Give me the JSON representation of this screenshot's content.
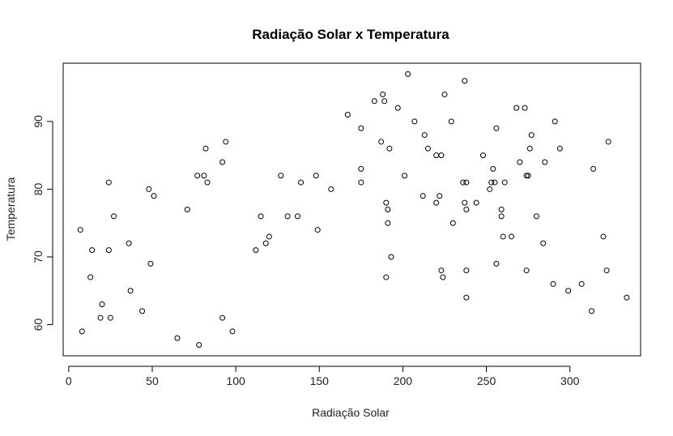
{
  "chart_data": {
    "type": "scatter",
    "title": "Radiação Solar x Temperatura",
    "xlabel": "Radiação Solar",
    "ylabel": "Temperatura",
    "xlim": [
      -3.3,
      342.3
    ],
    "ylim": [
      55.4,
      98.6
    ],
    "xticks": [
      0,
      50,
      100,
      150,
      200,
      250,
      300
    ],
    "yticks": [
      60,
      70,
      80,
      90
    ],
    "grid": false,
    "points": [
      [
        7,
        74
      ],
      [
        8,
        59
      ],
      [
        13,
        67
      ],
      [
        14,
        71
      ],
      [
        19,
        61
      ],
      [
        20,
        63
      ],
      [
        24,
        81
      ],
      [
        24,
        71
      ],
      [
        25,
        61
      ],
      [
        27,
        76
      ],
      [
        36,
        72
      ],
      [
        37,
        65
      ],
      [
        44,
        62
      ],
      [
        48,
        80
      ],
      [
        49,
        69
      ],
      [
        51,
        79
      ],
      [
        65,
        58
      ],
      [
        71,
        77
      ],
      [
        77,
        82
      ],
      [
        78,
        57
      ],
      [
        81,
        82
      ],
      [
        82,
        86
      ],
      [
        83,
        81
      ],
      [
        92,
        61
      ],
      [
        92,
        84
      ],
      [
        94,
        87
      ],
      [
        98,
        59
      ],
      [
        112,
        71
      ],
      [
        115,
        76
      ],
      [
        118,
        72
      ],
      [
        120,
        73
      ],
      [
        127,
        82
      ],
      [
        131,
        76
      ],
      [
        137,
        76
      ],
      [
        139,
        81
      ],
      [
        148,
        82
      ],
      [
        149,
        74
      ],
      [
        157,
        80
      ],
      [
        167,
        91
      ],
      [
        175,
        89
      ],
      [
        175,
        83
      ],
      [
        175,
        81
      ],
      [
        183,
        93
      ],
      [
        187,
        87
      ],
      [
        188,
        94
      ],
      [
        189,
        93
      ],
      [
        190,
        78
      ],
      [
        190,
        67
      ],
      [
        191,
        77
      ],
      [
        191,
        75
      ],
      [
        192,
        86
      ],
      [
        193,
        70
      ],
      [
        197,
        92
      ],
      [
        201,
        82
      ],
      [
        203,
        97
      ],
      [
        207,
        90
      ],
      [
        212,
        79
      ],
      [
        213,
        88
      ],
      [
        215,
        86
      ],
      [
        220,
        85
      ],
      [
        220,
        78
      ],
      [
        222,
        79
      ],
      [
        223,
        85
      ],
      [
        223,
        68
      ],
      [
        224,
        67
      ],
      [
        225,
        94
      ],
      [
        229,
        90
      ],
      [
        230,
        75
      ],
      [
        236,
        81
      ],
      [
        237,
        96
      ],
      [
        238,
        81
      ],
      [
        237,
        78
      ],
      [
        238,
        77
      ],
      [
        238,
        68
      ],
      [
        238,
        64
      ],
      [
        244,
        78
      ],
      [
        248,
        85
      ],
      [
        252,
        80
      ],
      [
        253,
        81
      ],
      [
        254,
        83
      ],
      [
        255,
        81
      ],
      [
        256,
        89
      ],
      [
        256,
        69
      ],
      [
        259,
        76
      ],
      [
        259,
        77
      ],
      [
        260,
        73
      ],
      [
        261,
        81
      ],
      [
        265,
        73
      ],
      [
        268,
        92
      ],
      [
        270,
        84
      ],
      [
        273,
        92
      ],
      [
        274,
        82
      ],
      [
        274,
        68
      ],
      [
        275,
        82
      ],
      [
        276,
        86
      ],
      [
        277,
        88
      ],
      [
        280,
        76
      ],
      [
        284,
        72
      ],
      [
        285,
        84
      ],
      [
        290,
        66
      ],
      [
        291,
        90
      ],
      [
        294,
        86
      ],
      [
        299,
        65
      ],
      [
        307,
        66
      ],
      [
        313,
        62
      ],
      [
        314,
        83
      ],
      [
        320,
        73
      ],
      [
        322,
        68
      ],
      [
        323,
        87
      ],
      [
        334,
        64
      ]
    ]
  }
}
